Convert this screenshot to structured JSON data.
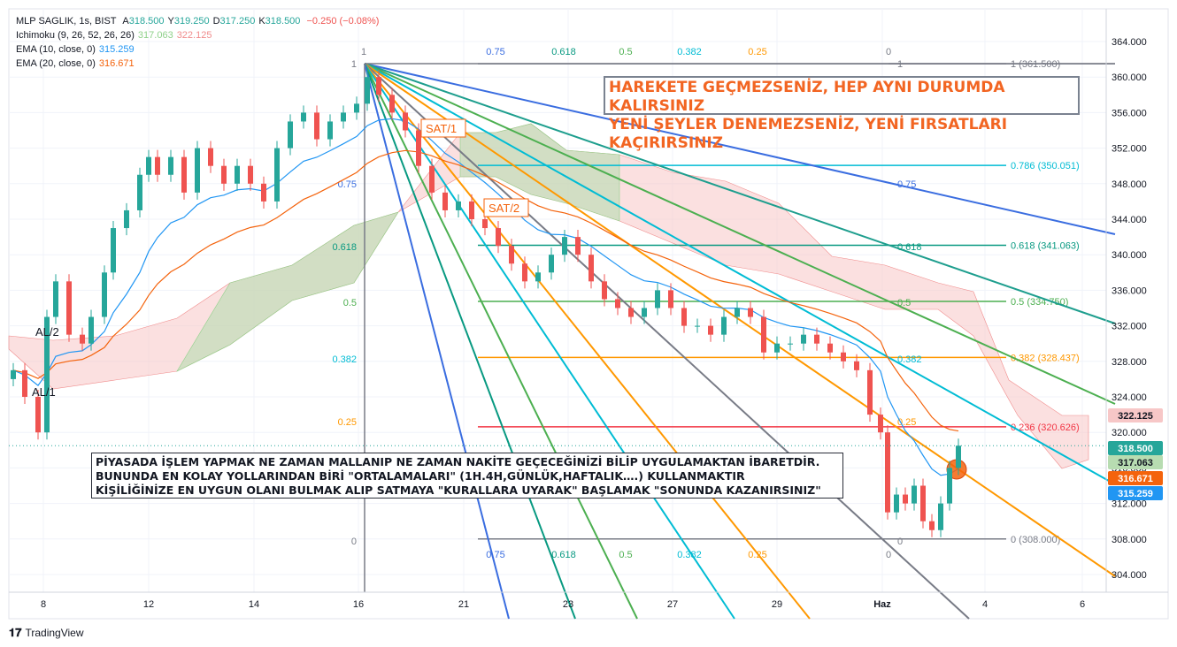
{
  "legend": {
    "symbol_line": "MLP SAGLIK, 1s, BIST",
    "ohlc": [
      {
        "label": "A",
        "value": "318.500"
      },
      {
        "label": "Y",
        "value": "319.250"
      },
      {
        "label": "D",
        "value": "317.250"
      },
      {
        "label": "K",
        "value": "318.500"
      }
    ],
    "change": "−0.250 (−0.08%)",
    "indicators": [
      {
        "name": "Ichimoku (9, 26, 52, 26, 26)",
        "values": [
          "317.063",
          "322.125"
        ],
        "colors": [
          "#8fd18a",
          "#f08c8c"
        ]
      },
      {
        "name": "EMA (10, close, 0)",
        "values": [
          "315.259"
        ],
        "colors": [
          "#2196f3"
        ]
      },
      {
        "name": "EMA (20, close, 0)",
        "values": [
          "316.671"
        ],
        "colors": [
          "#f4630c"
        ]
      }
    ]
  },
  "messages": {
    "top": [
      "HAREKETE GEÇMEZSENİZ, HEP AYNI DURUMDA KALIRSINIZ",
      "YENİ ŞEYLER DENEMEZSENİZ, YENİ FIRSATLARI KAÇIRIRSINIZ"
    ],
    "bottom": [
      "PİYASADA İŞLEM YAPMAK NE ZAMAN MALLANIP NE ZAMAN NAKİTE GEÇECEĞİNİZİ BİLİP UYGULAMAKTAN İBARETDİR.",
      "BUNUNDA EN KOLAY YOLLARINDAN BİRİ \"ORTALAMALARI\" (1H.4H,GÜNLÜK,HAFTALIK….) KULLANMAKTIR",
      "KİŞİLİĞİNİZE EN UYGUN OLANI BULMAK ALIP SATMAYA \"KURALLARA UYARAK\" BAŞLAMAK \"SONUNDA KAZANIRSINIZ\""
    ]
  },
  "branding": "TradingView",
  "colors": {
    "up": "#26a69a",
    "down": "#ef5350",
    "ema10": "#2196f3",
    "ema20": "#f4630c",
    "cloud_green": "#b7dcb1",
    "cloud_red": "#f7c7c7",
    "grid": "#f0f3fa",
    "axis_text": "#131722"
  },
  "chart_data": {
    "type": "candlestick",
    "symbol": "MLP SAGLIK",
    "interval": "1s",
    "exchange": "BIST",
    "y_axis": {
      "min": 302,
      "max": 366,
      "ticks": [
        304,
        308,
        312,
        316,
        320,
        324,
        328,
        332,
        336,
        340,
        344,
        348,
        352,
        356,
        360,
        364
      ]
    },
    "x_axis": {
      "ticks": [
        "8",
        "12",
        "14",
        "16",
        "21",
        "23",
        "27",
        "29",
        "Haz",
        "4",
        "6"
      ]
    },
    "last_price_labels": [
      {
        "value": "322.125",
        "color": "#f7c7c7",
        "text_color": "#131722"
      },
      {
        "value": "318.500",
        "color": "#26a69a",
        "text_color": "#ffffff"
      },
      {
        "value": "317.063",
        "color": "#b7dcb1",
        "text_color": "#131722"
      },
      {
        "value": "316.671",
        "color": "#f4630c",
        "text_color": "#ffffff"
      },
      {
        "value": "315.259",
        "color": "#2196f3",
        "text_color": "#ffffff"
      }
    ],
    "fib_retracement": {
      "high": 361.5,
      "low": 308.0,
      "levels": [
        {
          "ratio": "1",
          "label": "1 (361.500)",
          "value": 361.5,
          "color": "#787b86"
        },
        {
          "ratio": "0.786",
          "label": "0.786 (350.051)",
          "value": 350.051,
          "color": "#00bcd4"
        },
        {
          "ratio": "0.618",
          "label": "0.618 (341.063)",
          "value": 341.063,
          "color": "#089981"
        },
        {
          "ratio": "0.5",
          "label": "0.5 (334.750)",
          "value": 334.75,
          "color": "#4caf50"
        },
        {
          "ratio": "0.382",
          "label": "0.382 (328.437)",
          "value": 328.437,
          "color": "#ff9800"
        },
        {
          "ratio": "0.236",
          "label": "0.236 (320.626)",
          "value": 320.626,
          "color": "#f23645"
        },
        {
          "ratio": "0",
          "label": "0 (308.000)",
          "value": 308.0,
          "color": "#787b86"
        }
      ]
    },
    "gann_fan_labels": {
      "top": [
        "1",
        "0.75",
        "0.618",
        "0.5",
        "0.382",
        "0.25",
        "0"
      ],
      "bottom": [
        "0.75",
        "0.618",
        "0.5",
        "0.382",
        "0.25",
        "0"
      ],
      "left": [
        "1",
        "0.75",
        "0.618",
        "0.5",
        "0.382",
        "0.25",
        "0"
      ],
      "right": [
        "1",
        "0.75",
        "0.618",
        "0.5",
        "0.382",
        "0.25",
        "0"
      ]
    },
    "annotations": [
      "SAT/1",
      "SAT/2",
      "AL/2",
      "AL/1"
    ],
    "series": [
      {
        "name": "EMA (10, close, 0)",
        "last": 315.259
      },
      {
        "name": "EMA (20, close, 0)",
        "last": 316.671
      },
      {
        "name": "Ichimoku (9, 26, 52, 26, 26)",
        "values": [
          317.063,
          322.125
        ]
      }
    ],
    "ohlc_last": {
      "open": 318.5,
      "high": 319.25,
      "low": 317.25,
      "close": 318.5
    }
  }
}
